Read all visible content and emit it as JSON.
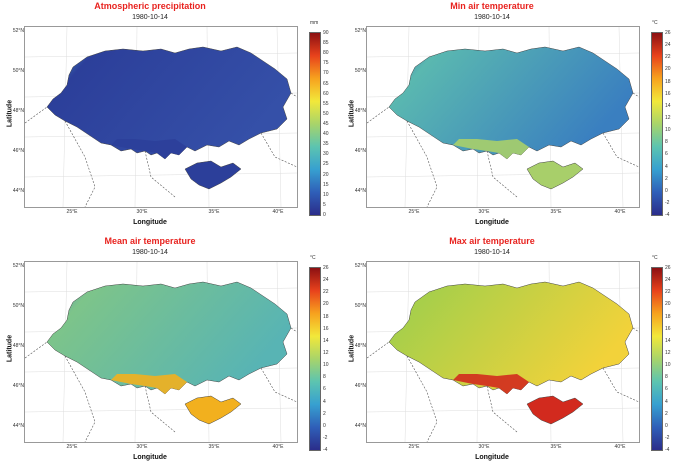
{
  "panels": [
    {
      "title": "Atmospheric precipitation",
      "date": "1980-10-14",
      "xlabel": "Longitude",
      "ylabel": "Latitude",
      "lat_ticks": [
        "52°N",
        "50°N",
        "48°N",
        "46°N",
        "44°N"
      ],
      "lon_ticks": [
        "25°E",
        "30°E",
        "35°E",
        "40°E"
      ],
      "unit": "mm",
      "colorbar_ticks": [
        "90",
        "85",
        "80",
        "75",
        "70",
        "65",
        "60",
        "55",
        "50",
        "45",
        "40",
        "35",
        "30",
        "25",
        "20",
        "15",
        "10",
        "5",
        "0"
      ],
      "fill": [
        "#2c3f9a",
        "#3550a8"
      ],
      "west_color": "#48b0c8",
      "south_color": "#2c3f9a"
    },
    {
      "title": "Min air temperature",
      "date": "1980-10-14",
      "xlabel": "Longitude",
      "ylabel": "Latitude",
      "lat_ticks": [
        "52°N",
        "50°N",
        "48°N",
        "46°N",
        "44°N"
      ],
      "lon_ticks": [
        "25°E",
        "30°E",
        "35°E",
        "40°E"
      ],
      "unit": "°C",
      "colorbar_ticks": [
        "26",
        "24",
        "22",
        "20",
        "18",
        "16",
        "14",
        "12",
        "10",
        "8",
        "6",
        "4",
        "2",
        "0",
        "-2",
        "-4"
      ],
      "fill": [
        "#5ab8b0",
        "#3a7fc0"
      ],
      "west_color": "#3a62b0",
      "south_color": "#a8cf6a"
    },
    {
      "title": "Mean air temperature",
      "date": "1980-10-14",
      "xlabel": "Longitude",
      "ylabel": "Latitude",
      "lat_ticks": [
        "52°N",
        "50°N",
        "48°N",
        "46°N",
        "44°N"
      ],
      "lon_ticks": [
        "25°E",
        "30°E",
        "35°E",
        "40°E"
      ],
      "unit": "°C",
      "colorbar_ticks": [
        "26",
        "24",
        "22",
        "20",
        "18",
        "16",
        "14",
        "12",
        "10",
        "8",
        "6",
        "4",
        "2",
        "0",
        "-2",
        "-4"
      ],
      "fill": [
        "#7dc48a",
        "#58b4b4"
      ],
      "west_color": "#4a88c0",
      "south_color": "#f2b01e"
    },
    {
      "title": "Max air temperature",
      "date": "1980-10-14",
      "xlabel": "Longitude",
      "ylabel": "Latitude",
      "lat_ticks": [
        "52°N",
        "50°N",
        "48°N",
        "46°N",
        "44°N"
      ],
      "lon_ticks": [
        "25°E",
        "30°E",
        "35°E",
        "40°E"
      ],
      "unit": "°C",
      "colorbar_ticks": [
        "26",
        "24",
        "22",
        "20",
        "18",
        "16",
        "14",
        "12",
        "10",
        "8",
        "6",
        "4",
        "2",
        "0",
        "-2",
        "-4"
      ],
      "fill": [
        "#a8cf4a",
        "#f2d23a"
      ],
      "west_color": "#a8cf4a",
      "south_color": "#d22a1e"
    }
  ],
  "colorbar_gradient": [
    "#2b2d8a",
    "#2f5fb8",
    "#37a0d0",
    "#5cc4b0",
    "#a8d46a",
    "#f2e83a",
    "#f7a21e",
    "#e8421c",
    "#8c1012"
  ]
}
